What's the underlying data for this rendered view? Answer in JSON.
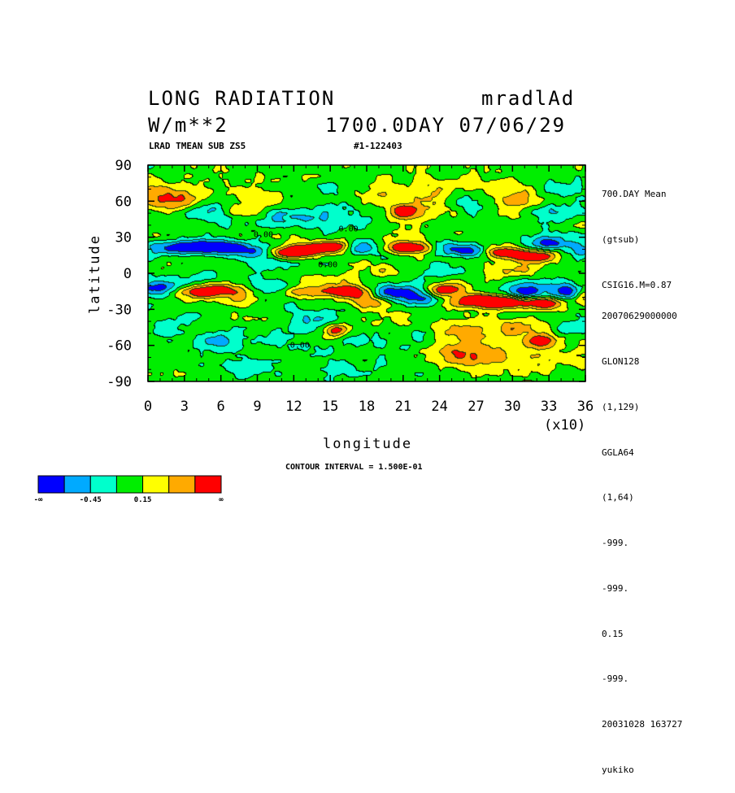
{
  "header": {
    "title_left": "LONG RADIATION",
    "title_right": "mradlAd",
    "units": "W/m**2",
    "time_info": "1700.0DAY 07/06/29",
    "subtitle_left": "LRAD TMEAN SUB ZS5",
    "subtitle_right": "#1-122403"
  },
  "side_info": {
    "top": [
      "700.DAY Mean",
      "(gtsub)",
      "CSIG16.M=0.87"
    ],
    "bottom": [
      "20070629000000",
      "GLON128",
      "(1,129)",
      "GGLA64",
      "(1,64)",
      "-999.",
      "-999.",
      "0.15",
      "-999.",
      "20031028 163727",
      "yukiko"
    ]
  },
  "footer": {
    "contour_interval": "CONTOUR INTERVAL = 1.500E-01"
  },
  "chart_data": {
    "type": "heatmap",
    "xlabel": "longitude",
    "ylabel": "latitude",
    "x_multiplier": "(x10)",
    "xlim": [
      0,
      36
    ],
    "ylim": [
      -90,
      90
    ],
    "x_ticks": [
      "0",
      "3",
      "6",
      "9",
      "12",
      "15",
      "18",
      "21",
      "24",
      "27",
      "30",
      "33",
      "36"
    ],
    "y_ticks": [
      "90",
      "60",
      "30",
      "0",
      "-30",
      "-60",
      "-90"
    ],
    "contour_labels": [
      "0.00",
      "0.00",
      "0.00",
      "0.00"
    ],
    "colorbar": {
      "colors": [
        "#0000ff",
        "#00aaff",
        "#00ffcc",
        "#00ee00",
        "#ffff00",
        "#ffaa00",
        "#ff0000"
      ],
      "labels": [
        "-∞",
        "-0.45",
        "0.15",
        "∞"
      ]
    },
    "blobs": [
      {
        "x": 2.0,
        "y": 62,
        "v": 0.75,
        "rx": 2.3,
        "ry": 10
      },
      {
        "x": 0.3,
        "y": 70,
        "v": 0.45,
        "rx": 1.2,
        "ry": 10
      },
      {
        "x": 9.5,
        "y": 60,
        "v": 0.35,
        "rx": 3.0,
        "ry": 9
      },
      {
        "x": 5.0,
        "y": 52,
        "v": -0.6,
        "rx": 1.8,
        "ry": 7
      },
      {
        "x": 7.0,
        "y": 52,
        "v": 0.3,
        "rx": 1.3,
        "ry": 5
      },
      {
        "x": 12.0,
        "y": 48,
        "v": -0.55,
        "rx": 2.5,
        "ry": 10
      },
      {
        "x": 16.0,
        "y": 50,
        "v": -0.35,
        "rx": 2.5,
        "ry": 10
      },
      {
        "x": 21.0,
        "y": 52,
        "v": 0.9,
        "rx": 1.2,
        "ry": 6
      },
      {
        "x": 22.5,
        "y": 60,
        "v": 0.35,
        "rx": 3.5,
        "ry": 14
      },
      {
        "x": 25.0,
        "y": 73,
        "v": 0.35,
        "rx": 4,
        "ry": 9
      },
      {
        "x": 27.0,
        "y": 60,
        "v": -0.5,
        "rx": 2.5,
        "ry": 12
      },
      {
        "x": 30.0,
        "y": 60,
        "v": 0.5,
        "rx": 2.5,
        "ry": 14
      },
      {
        "x": 33.0,
        "y": 52,
        "v": -0.45,
        "rx": 2,
        "ry": 8
      },
      {
        "x": 34.0,
        "y": 70,
        "v": -0.35,
        "rx": 2,
        "ry": 9
      },
      {
        "x": 19.0,
        "y": 67,
        "v": 0.15,
        "rx": 2.5,
        "ry": 6
      },
      {
        "x": 14.0,
        "y": 72,
        "v": -0.25,
        "rx": 2.5,
        "ry": 6
      },
      {
        "x": 2.5,
        "y": 22,
        "v": -1.05,
        "rx": 2.5,
        "ry": 6
      },
      {
        "x": 6.0,
        "y": 23,
        "v": -1.15,
        "rx": 2.2,
        "ry": 6
      },
      {
        "x": 8.5,
        "y": 18,
        "v": -0.8,
        "rx": 2.0,
        "ry": 6
      },
      {
        "x": 11.5,
        "y": 18,
        "v": 1.2,
        "rx": 1.8,
        "ry": 5
      },
      {
        "x": 13.5,
        "y": 21,
        "v": 1.0,
        "rx": 1.5,
        "ry": 5
      },
      {
        "x": 15.5,
        "y": 23,
        "v": 1.2,
        "rx": 1.3,
        "ry": 5
      },
      {
        "x": 17.5,
        "y": 22,
        "v": -0.8,
        "rx": 1.8,
        "ry": 6
      },
      {
        "x": 21.5,
        "y": 22,
        "v": 1.3,
        "rx": 2.2,
        "ry": 5
      },
      {
        "x": 24.5,
        "y": 22,
        "v": -0.7,
        "rx": 1.5,
        "ry": 6
      },
      {
        "x": 26.5,
        "y": 19,
        "v": -0.8,
        "rx": 1.5,
        "ry": 5
      },
      {
        "x": 29.0,
        "y": 18,
        "v": 0.9,
        "rx": 1.5,
        "ry": 4
      },
      {
        "x": 31.5,
        "y": 15,
        "v": 1.2,
        "rx": 2.2,
        "ry": 6
      },
      {
        "x": 33.0,
        "y": 25,
        "v": -0.9,
        "rx": 2.0,
        "ry": 6
      },
      {
        "x": 35.5,
        "y": 20,
        "v": -0.6,
        "rx": 1.2,
        "ry": 6
      },
      {
        "x": 1.5,
        "y": 5,
        "v": 0.15,
        "rx": 2.5,
        "ry": 5
      },
      {
        "x": 4.5,
        "y": -5,
        "v": -0.35,
        "rx": 3.0,
        "ry": 7
      },
      {
        "x": 10,
        "y": 8,
        "v": -0.3,
        "rx": 2.5,
        "ry": 5
      },
      {
        "x": 14,
        "y": -5,
        "v": 0.4,
        "rx": 2.5,
        "ry": 5
      },
      {
        "x": 19,
        "y": 3,
        "v": 0.3,
        "rx": 2.5,
        "ry": 6
      },
      {
        "x": 24,
        "y": 2,
        "v": -0.3,
        "rx": 3,
        "ry": 6
      },
      {
        "x": 30,
        "y": 3,
        "v": 0.35,
        "rx": 3,
        "ry": 5
      },
      {
        "x": 1.0,
        "y": -12,
        "v": -0.9,
        "rx": 1.5,
        "ry": 6
      },
      {
        "x": 3.5,
        "y": -15,
        "v": 0.75,
        "rx": 2.0,
        "ry": 5
      },
      {
        "x": 6.0,
        "y": -13,
        "v": 0.9,
        "rx": 1.8,
        "ry": 6
      },
      {
        "x": 8.0,
        "y": -20,
        "v": 0.45,
        "rx": 1.6,
        "ry": 6
      },
      {
        "x": 10.5,
        "y": -12,
        "v": -0.5,
        "rx": 1.5,
        "ry": 6
      },
      {
        "x": 13.5,
        "y": -14,
        "v": 0.75,
        "rx": 2.5,
        "ry": 5
      },
      {
        "x": 16.5,
        "y": -15,
        "v": 1.2,
        "rx": 1.5,
        "ry": 5
      },
      {
        "x": 18.0,
        "y": -23,
        "v": 0.5,
        "rx": 1.8,
        "ry": 6
      },
      {
        "x": 20.5,
        "y": -15,
        "v": -1.0,
        "rx": 2.0,
        "ry": 6
      },
      {
        "x": 22.5,
        "y": -21,
        "v": -0.8,
        "rx": 1.5,
        "ry": 5
      },
      {
        "x": 24.5,
        "y": -13,
        "v": 1.0,
        "rx": 1.5,
        "ry": 5
      },
      {
        "x": 27.0,
        "y": -22,
        "v": 1.2,
        "rx": 2.0,
        "ry": 6
      },
      {
        "x": 29.5,
        "y": -23,
        "v": 1.15,
        "rx": 2.2,
        "ry": 5
      },
      {
        "x": 31.0,
        "y": -15,
        "v": -1.0,
        "rx": 2.0,
        "ry": 7
      },
      {
        "x": 32.5,
        "y": -24,
        "v": 1.1,
        "rx": 1.5,
        "ry": 5
      },
      {
        "x": 34.5,
        "y": -14,
        "v": -0.8,
        "rx": 1.5,
        "ry": 7
      },
      {
        "x": 35.8,
        "y": -18,
        "v": 0.7,
        "rx": 0.8,
        "ry": 6
      },
      {
        "x": 1.5,
        "y": -45,
        "v": -0.35,
        "rx": 2.0,
        "ry": 9
      },
      {
        "x": 5.5,
        "y": -55,
        "v": -0.5,
        "rx": 2.0,
        "ry": 8
      },
      {
        "x": 10.5,
        "y": -55,
        "v": -0.3,
        "rx": 3,
        "ry": 9
      },
      {
        "x": 13.5,
        "y": -38,
        "v": -0.45,
        "rx": 2,
        "ry": 8
      },
      {
        "x": 15.3,
        "y": -47,
        "v": 1.0,
        "rx": 0.9,
        "ry": 5
      },
      {
        "x": 17.5,
        "y": -55,
        "v": -0.45,
        "rx": 2,
        "ry": 7
      },
      {
        "x": 19.0,
        "y": -40,
        "v": 0.3,
        "rx": 2.5,
        "ry": 10
      },
      {
        "x": 22.5,
        "y": -52,
        "v": -0.3,
        "rx": 3,
        "ry": 9
      },
      {
        "x": 25.5,
        "y": -50,
        "v": 0.65,
        "rx": 2.5,
        "ry": 10
      },
      {
        "x": 26.5,
        "y": -68,
        "v": 0.7,
        "rx": 3.0,
        "ry": 10
      },
      {
        "x": 31.5,
        "y": -68,
        "v": 0.3,
        "rx": 4.5,
        "ry": 13
      },
      {
        "x": 32.3,
        "y": -55,
        "v": 1.1,
        "rx": 1.3,
        "ry": 5
      },
      {
        "x": 30.0,
        "y": -45,
        "v": 0.5,
        "rx": 2.0,
        "ry": 8
      },
      {
        "x": 35.0,
        "y": -45,
        "v": -0.3,
        "rx": 1.5,
        "ry": 8
      },
      {
        "x": 8,
        "y": -80,
        "v": -0.25,
        "rx": 3,
        "ry": 7
      },
      {
        "x": 17,
        "y": -78,
        "v": -0.2,
        "rx": 3,
        "ry": 7
      }
    ]
  }
}
